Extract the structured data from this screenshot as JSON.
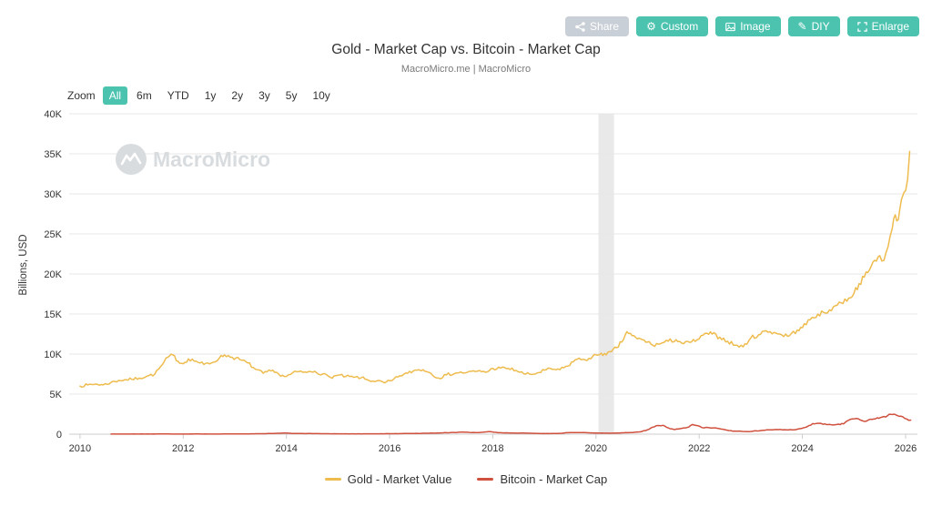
{
  "title": "Gold - Market Cap vs. Bitcoin - Market Cap",
  "subtitle": "MacroMicro.me | MacroMicro",
  "watermark": "MacroMicro",
  "colors": {
    "accent": "#4cc3af",
    "muted_button": "#c9cfd6",
    "gold": "#eebc4e",
    "bitcoin": "#d0503e",
    "grid": "#e7e7e7",
    "axis": "#cccccc",
    "watermark": "#d8dcdf"
  },
  "toolbar": {
    "buttons": [
      {
        "label": "Share",
        "icon": "share-icon"
      },
      {
        "label": "Custom",
        "icon": "gear-icon"
      },
      {
        "label": "Image",
        "icon": "image-icon"
      },
      {
        "label": "DIY",
        "icon": "pencil-icon"
      },
      {
        "label": "Enlarge",
        "icon": "enlarge-icon"
      }
    ]
  },
  "zoom": {
    "label": "Zoom",
    "active": "All",
    "options": [
      "All",
      "6m",
      "YTD",
      "1y",
      "2y",
      "3y",
      "5y",
      "10y"
    ]
  },
  "legend": [
    {
      "label": "Gold - Market Value",
      "color": "#eebc4e"
    },
    {
      "label": "Bitcoin - Market Cap",
      "color": "#d0503e"
    }
  ],
  "chart_data": {
    "type": "line",
    "title": "Gold - Market Cap vs. Bitcoin - Market Cap",
    "subtitle": "MacroMicro.me | MacroMicro",
    "ylabel": "Billions, USD",
    "xlabel": "",
    "ylim": [
      0,
      40000
    ],
    "yticks": [
      0,
      5000,
      10000,
      15000,
      20000,
      25000,
      30000,
      35000,
      40000
    ],
    "ytick_labels": [
      "0",
      "5K",
      "10K",
      "15K",
      "20K",
      "25K",
      "30K",
      "35K",
      "40K"
    ],
    "xlim": [
      2009.79,
      2026.23
    ],
    "xticks": [
      2010,
      2012,
      2014,
      2016,
      2018,
      2020,
      2022,
      2024,
      2026
    ],
    "grid": "horizontal",
    "legend_position": "bottom",
    "recession_band": {
      "from": 2020.05,
      "to": 2020.35,
      "color": "#e9e9e9"
    },
    "series": [
      {
        "name": "Gold - Market Value",
        "color": "#eebc4e",
        "points": [
          [
            2010.0,
            6000
          ],
          [
            2010.15,
            6150
          ],
          [
            2010.3,
            6250
          ],
          [
            2010.45,
            6150
          ],
          [
            2010.6,
            6450
          ],
          [
            2010.75,
            6700
          ],
          [
            2010.9,
            6800
          ],
          [
            2011.0,
            6850
          ],
          [
            2011.15,
            7000
          ],
          [
            2011.3,
            7250
          ],
          [
            2011.45,
            7500
          ],
          [
            2011.6,
            8700
          ],
          [
            2011.7,
            9600
          ],
          [
            2011.8,
            9900
          ],
          [
            2011.9,
            9100
          ],
          [
            2012.0,
            8800
          ],
          [
            2012.1,
            9400
          ],
          [
            2012.25,
            9100
          ],
          [
            2012.4,
            8700
          ],
          [
            2012.55,
            8900
          ],
          [
            2012.7,
            9500
          ],
          [
            2012.8,
            9900
          ],
          [
            2012.95,
            9600
          ],
          [
            2013.1,
            9300
          ],
          [
            2013.25,
            8900
          ],
          [
            2013.4,
            8100
          ],
          [
            2013.55,
            7600
          ],
          [
            2013.7,
            7900
          ],
          [
            2013.85,
            7500
          ],
          [
            2014.0,
            7200
          ],
          [
            2014.2,
            7800
          ],
          [
            2014.4,
            7700
          ],
          [
            2014.55,
            7850
          ],
          [
            2014.7,
            7500
          ],
          [
            2014.85,
            7100
          ],
          [
            2015.0,
            7350
          ],
          [
            2015.15,
            7200
          ],
          [
            2015.3,
            7100
          ],
          [
            2015.45,
            7050
          ],
          [
            2015.6,
            6700
          ],
          [
            2015.75,
            6650
          ],
          [
            2015.9,
            6400
          ],
          [
            2016.05,
            6700
          ],
          [
            2016.2,
            7300
          ],
          [
            2016.35,
            7600
          ],
          [
            2016.5,
            8000
          ],
          [
            2016.65,
            8050
          ],
          [
            2016.8,
            7600
          ],
          [
            2016.95,
            7000
          ],
          [
            2017.1,
            7400
          ],
          [
            2017.3,
            7650
          ],
          [
            2017.5,
            7700
          ],
          [
            2017.7,
            7850
          ],
          [
            2017.9,
            7800
          ],
          [
            2018.0,
            8200
          ],
          [
            2018.15,
            8250
          ],
          [
            2018.3,
            8200
          ],
          [
            2018.45,
            7950
          ],
          [
            2018.6,
            7550
          ],
          [
            2018.75,
            7450
          ],
          [
            2018.9,
            7700
          ],
          [
            2019.0,
            8000
          ],
          [
            2019.15,
            8100
          ],
          [
            2019.3,
            8050
          ],
          [
            2019.45,
            8500
          ],
          [
            2019.6,
            9300
          ],
          [
            2019.75,
            9350
          ],
          [
            2019.9,
            9400
          ],
          [
            2020.0,
            9900
          ],
          [
            2020.1,
            10100
          ],
          [
            2020.2,
            9900
          ],
          [
            2020.3,
            10300
          ],
          [
            2020.4,
            10800
          ],
          [
            2020.5,
            11500
          ],
          [
            2020.6,
            12800
          ],
          [
            2020.7,
            12300
          ],
          [
            2020.8,
            11900
          ],
          [
            2020.9,
            11800
          ],
          [
            2021.0,
            11500
          ],
          [
            2021.1,
            11100
          ],
          [
            2021.25,
            11300
          ],
          [
            2021.4,
            11600
          ],
          [
            2021.55,
            11800
          ],
          [
            2021.7,
            11300
          ],
          [
            2021.85,
            11500
          ],
          [
            2022.0,
            11900
          ],
          [
            2022.15,
            12600
          ],
          [
            2022.25,
            12500
          ],
          [
            2022.4,
            12100
          ],
          [
            2022.55,
            11600
          ],
          [
            2022.7,
            11100
          ],
          [
            2022.85,
            10900
          ],
          [
            2023.0,
            12000
          ],
          [
            2023.15,
            12400
          ],
          [
            2023.3,
            12900
          ],
          [
            2023.45,
            12700
          ],
          [
            2023.6,
            12400
          ],
          [
            2023.75,
            12300
          ],
          [
            2023.9,
            13000
          ],
          [
            2024.0,
            13300
          ],
          [
            2024.15,
            14300
          ],
          [
            2024.3,
            15000
          ],
          [
            2024.45,
            15100
          ],
          [
            2024.6,
            15900
          ],
          [
            2024.75,
            16400
          ],
          [
            2024.9,
            17000
          ],
          [
            2025.0,
            17600
          ],
          [
            2025.1,
            18800
          ],
          [
            2025.2,
            19600
          ],
          [
            2025.3,
            20500
          ],
          [
            2025.4,
            21700
          ],
          [
            2025.5,
            22300
          ],
          [
            2025.58,
            21700
          ],
          [
            2025.66,
            23400
          ],
          [
            2025.74,
            25600
          ],
          [
            2025.8,
            27400
          ],
          [
            2025.86,
            26800
          ],
          [
            2025.92,
            29300
          ],
          [
            2025.97,
            30200
          ],
          [
            2026.0,
            30400
          ],
          [
            2026.04,
            31800
          ],
          [
            2026.08,
            35300
          ]
        ]
      },
      {
        "name": "Bitcoin - Market Cap",
        "color": "#d0503e",
        "points": [
          [
            2010.6,
            10
          ],
          [
            2011.0,
            15
          ],
          [
            2011.5,
            20
          ],
          [
            2012.0,
            15
          ],
          [
            2012.5,
            15
          ],
          [
            2013.0,
            20
          ],
          [
            2013.6,
            60
          ],
          [
            2013.95,
            140
          ],
          [
            2014.15,
            90
          ],
          [
            2014.5,
            70
          ],
          [
            2014.9,
            50
          ],
          [
            2015.3,
            40
          ],
          [
            2015.8,
            50
          ],
          [
            2016.2,
            70
          ],
          [
            2016.6,
            95
          ],
          [
            2017.0,
            160
          ],
          [
            2017.4,
            250
          ],
          [
            2017.7,
            190
          ],
          [
            2017.95,
            310
          ],
          [
            2018.1,
            180
          ],
          [
            2018.3,
            160
          ],
          [
            2018.5,
            130
          ],
          [
            2018.75,
            115
          ],
          [
            2018.95,
            70
          ],
          [
            2019.1,
            70
          ],
          [
            2019.3,
            100
          ],
          [
            2019.5,
            210
          ],
          [
            2019.7,
            190
          ],
          [
            2019.9,
            160
          ],
          [
            2020.0,
            135
          ],
          [
            2020.15,
            120
          ],
          [
            2020.3,
            125
          ],
          [
            2020.5,
            170
          ],
          [
            2020.7,
            200
          ],
          [
            2020.85,
            280
          ],
          [
            2021.0,
            540
          ],
          [
            2021.1,
            880
          ],
          [
            2021.2,
            1080
          ],
          [
            2021.3,
            1100
          ],
          [
            2021.4,
            780
          ],
          [
            2021.5,
            600
          ],
          [
            2021.6,
            640
          ],
          [
            2021.7,
            780
          ],
          [
            2021.8,
            900
          ],
          [
            2021.87,
            1200
          ],
          [
            2021.95,
            1080
          ],
          [
            2022.05,
            830
          ],
          [
            2022.2,
            790
          ],
          [
            2022.35,
            740
          ],
          [
            2022.5,
            560
          ],
          [
            2022.65,
            370
          ],
          [
            2022.8,
            370
          ],
          [
            2022.95,
            310
          ],
          [
            2023.05,
            390
          ],
          [
            2023.2,
            460
          ],
          [
            2023.35,
            530
          ],
          [
            2023.5,
            580
          ],
          [
            2023.65,
            560
          ],
          [
            2023.8,
            530
          ],
          [
            2023.95,
            680
          ],
          [
            2024.05,
            830
          ],
          [
            2024.2,
            1320
          ],
          [
            2024.3,
            1350
          ],
          [
            2024.4,
            1230
          ],
          [
            2024.5,
            1190
          ],
          [
            2024.6,
            1150
          ],
          [
            2024.7,
            1250
          ],
          [
            2024.8,
            1280
          ],
          [
            2024.9,
            1750
          ],
          [
            2024.97,
            1900
          ],
          [
            2025.05,
            1950
          ],
          [
            2025.15,
            1700
          ],
          [
            2025.25,
            1650
          ],
          [
            2025.35,
            1850
          ],
          [
            2025.45,
            2050
          ],
          [
            2025.55,
            2150
          ],
          [
            2025.65,
            2300
          ],
          [
            2025.75,
            2450
          ],
          [
            2025.85,
            2300
          ],
          [
            2025.95,
            2150
          ],
          [
            2026.02,
            1900
          ],
          [
            2026.1,
            1750
          ]
        ]
      }
    ]
  }
}
